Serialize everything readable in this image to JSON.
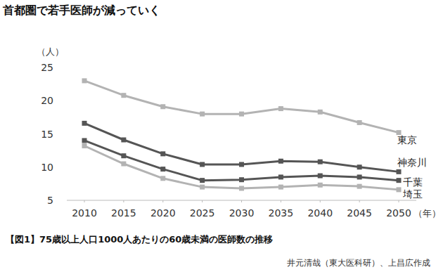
{
  "chart_data": {
    "type": "line",
    "title": "首都圏で若手医師が減っていく",
    "y_label": "（人）",
    "x_label": "（年）",
    "caption": "【図1】75歳以上人口1000人あたりの60歳未満の医師数の推移",
    "source": "井元清哉（東大医科研）、上昌広作成",
    "x": [
      2010,
      2015,
      2020,
      2025,
      2030,
      2035,
      2040,
      2045,
      2050
    ],
    "xlim": [
      2010,
      2050
    ],
    "xticks": [
      2010,
      2015,
      2020,
      2025,
      2030,
      2035,
      2040,
      2045,
      2050
    ],
    "ylim": [
      5,
      25
    ],
    "yticks": [
      5,
      10,
      15,
      20,
      25
    ],
    "grid": false,
    "marker": "square",
    "series": [
      {
        "name": "東京",
        "color": "#b3b3b3",
        "values": [
          23,
          20.8,
          19.1,
          18,
          18,
          18.8,
          18.3,
          16.7,
          15.2
        ]
      },
      {
        "name": "神奈川",
        "color": "#555555",
        "values": [
          16.6,
          14.1,
          12,
          10.4,
          10.4,
          10.9,
          10.8,
          10,
          9.3
        ]
      },
      {
        "name": "千葉",
        "color": "#555555",
        "values": [
          14,
          11.7,
          9.7,
          8,
          8.1,
          8.5,
          8.7,
          8.5,
          8
        ]
      },
      {
        "name": "埼玉",
        "color": "#b3b3b3",
        "values": [
          13.2,
          10.5,
          8.3,
          7,
          6.8,
          7,
          7.3,
          7.1,
          6.6
        ]
      }
    ]
  }
}
